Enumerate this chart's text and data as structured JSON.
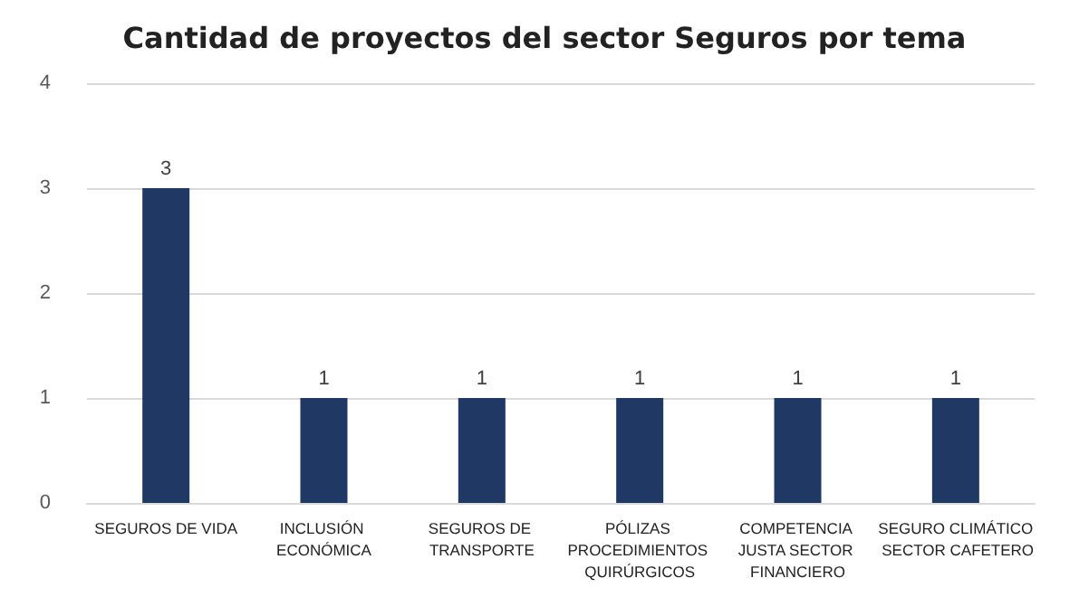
{
  "chart_data": {
    "type": "bar",
    "title": "Cantidad de proyectos del sector Seguros por tema",
    "categories": [
      "SEGUROS DE VIDA",
      "INCLUSIÓN ECONÓMICA",
      "SEGUROS DE TRANSPORTE",
      "PÓLIZAS PROCEDIMIENTOS QUIRÚRGICOS",
      "COMPETENCIA JUSTA SECTOR FINANCIERO",
      "SEGURO CLIMÁTICO SECTOR CAFETERO"
    ],
    "values": [
      3,
      1,
      1,
      1,
      1,
      1
    ],
    "color": "#203864",
    "ylim": [
      0,
      4
    ],
    "yticks": [
      0,
      1,
      2,
      3,
      4
    ],
    "grid": "y",
    "data_labels": true
  }
}
